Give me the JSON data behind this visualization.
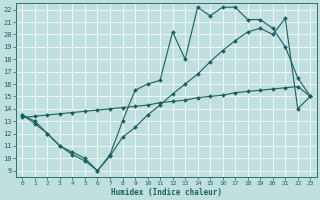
{
  "xlabel": "Humidex (Indice chaleur)",
  "xlim": [
    -0.5,
    23.5
  ],
  "ylim": [
    8.5,
    22.5
  ],
  "yticks": [
    9,
    10,
    11,
    12,
    13,
    14,
    15,
    16,
    17,
    18,
    19,
    20,
    21,
    22
  ],
  "xticks": [
    0,
    1,
    2,
    3,
    4,
    5,
    6,
    7,
    8,
    9,
    10,
    11,
    12,
    13,
    14,
    15,
    16,
    17,
    18,
    19,
    20,
    21,
    22,
    23
  ],
  "bg_color": "#c0e0e0",
  "line_color": "#1a5f5f",
  "grid_color": "#ffffff",
  "line1_y": [
    13.5,
    12.8,
    12.0,
    11.0,
    10.3,
    9.8,
    9.0,
    10.3,
    13.0,
    15.5,
    16.0,
    16.3,
    20.2,
    18.0,
    22.2,
    21.5,
    22.2,
    22.2,
    21.2,
    21.2,
    20.5,
    19.0,
    16.5,
    15.0
  ],
  "line2_y": [
    13.5,
    13.0,
    12.0,
    11.0,
    10.5,
    10.0,
    9.0,
    10.2,
    11.7,
    12.5,
    13.5,
    14.3,
    15.2,
    16.0,
    16.8,
    17.8,
    18.7,
    19.5,
    20.2,
    20.5,
    20.0,
    21.3,
    14.0,
    15.0
  ],
  "line3_y": [
    13.3,
    13.4,
    13.5,
    13.6,
    13.7,
    13.8,
    13.9,
    14.0,
    14.1,
    14.2,
    14.3,
    14.5,
    14.6,
    14.7,
    14.9,
    15.0,
    15.1,
    15.3,
    15.4,
    15.5,
    15.6,
    15.7,
    15.8,
    15.0
  ]
}
